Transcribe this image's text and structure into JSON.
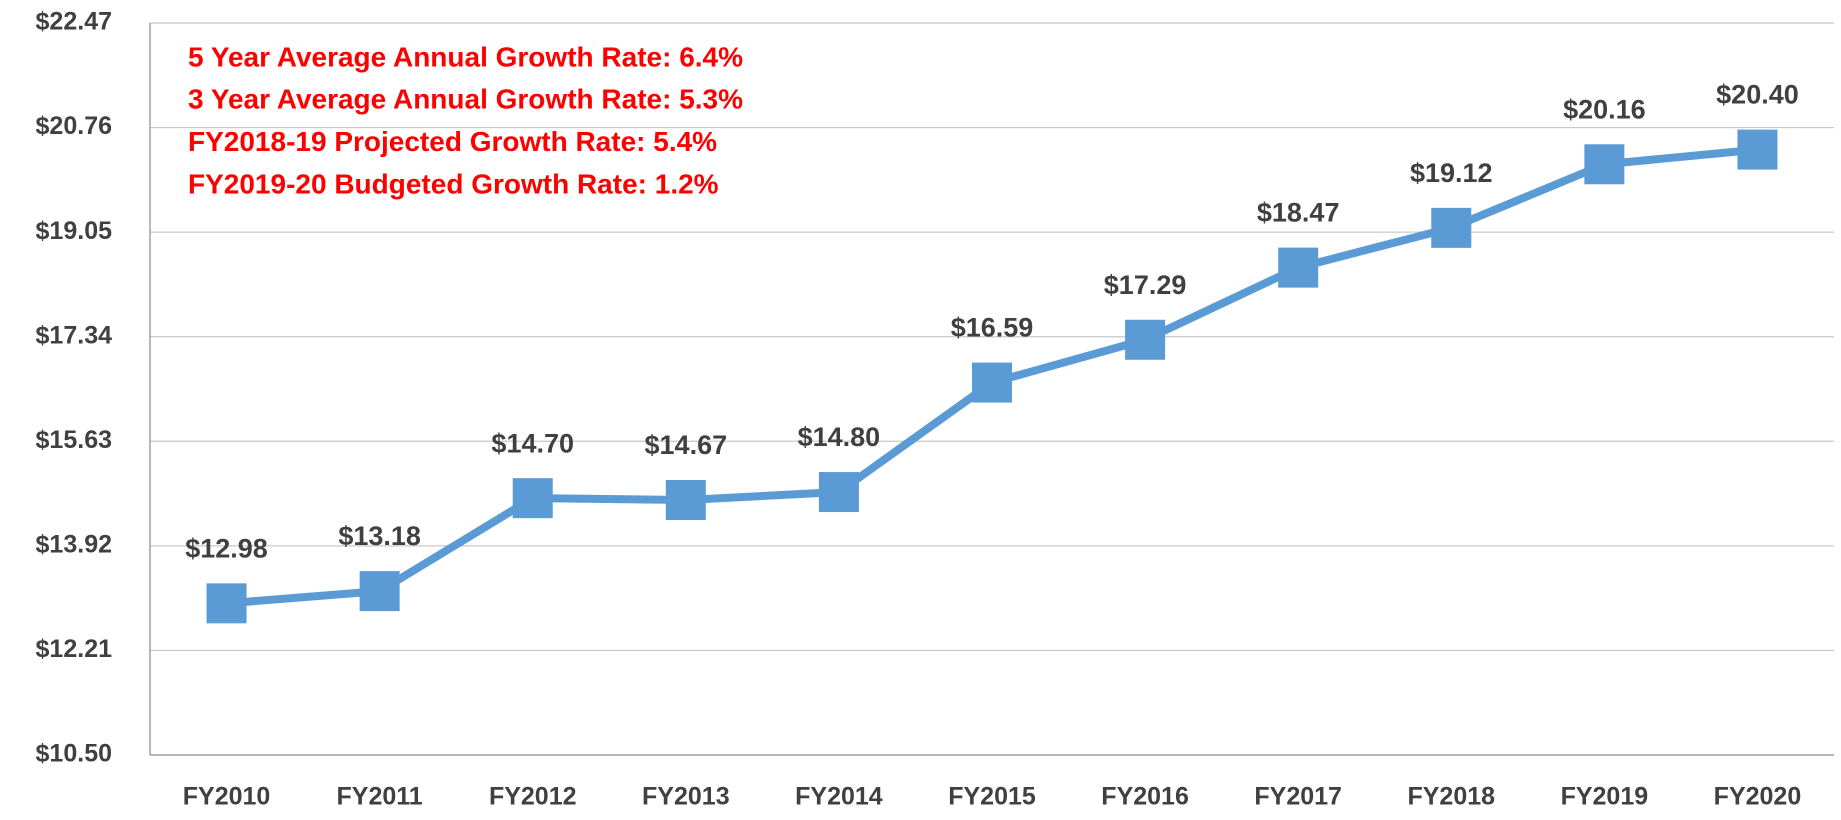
{
  "chart_data": {
    "type": "line",
    "annotations": [
      "5 Year Average Annual Growth Rate:  6.4%",
      "3 Year Average Annual Growth Rate:  5.3%",
      "FY2018-19 Projected Growth Rate:  5.4%",
      "FY2019-20 Budgeted Growth Rate:  1.2%"
    ],
    "categories": [
      "FY2010",
      "FY2011",
      "FY2012",
      "FY2013",
      "FY2014",
      "FY2015",
      "FY2016",
      "FY2017",
      "FY2018",
      "FY2019",
      "FY2020"
    ],
    "values": [
      12.98,
      13.18,
      14.7,
      14.67,
      14.8,
      16.59,
      17.29,
      18.47,
      19.12,
      20.16,
      20.4
    ],
    "value_labels": [
      "$12.98",
      "$13.18",
      "$14.70",
      "$14.67",
      "$14.80",
      "$16.59",
      "$17.29",
      "$18.47",
      "$19.12",
      "$20.16",
      "$20.40"
    ],
    "color": "#5b9bd5",
    "annotation_color": "#ff0000",
    "ylim": [
      10.5,
      22.47
    ],
    "yticks": [
      {
        "value": 10.5,
        "label": "$10.50"
      },
      {
        "value": 12.21,
        "label": "$12.21"
      },
      {
        "value": 13.92,
        "label": "$13.92"
      },
      {
        "value": 15.63,
        "label": "$15.63"
      },
      {
        "value": 17.34,
        "label": "$17.34"
      },
      {
        "value": 19.05,
        "label": "$19.05"
      },
      {
        "value": 20.76,
        "label": "$20.76"
      },
      {
        "value": 22.47,
        "label": "$22.47"
      }
    ],
    "grid": true
  }
}
